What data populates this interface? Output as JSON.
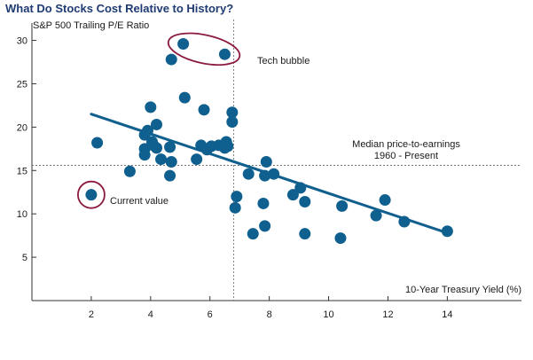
{
  "chart_data": {
    "type": "scatter",
    "title": "What Do Stocks Cost Relative to History?",
    "xlabel": "10-Year Treasury Yield (%)",
    "ylabel": "S&P 500 Trailing P/E Ratio",
    "xlim": [
      0,
      16.5
    ],
    "ylim": [
      0,
      32
    ],
    "xticks": [
      2,
      4,
      6,
      8,
      10,
      12,
      14
    ],
    "yticks": [
      5,
      10,
      15,
      20,
      25,
      30
    ],
    "grid": false,
    "series": [
      {
        "color": "#0f5f8f",
        "points": [
          [
            2.0,
            12.2
          ],
          [
            2.2,
            18.2
          ],
          [
            3.3,
            14.9
          ],
          [
            3.8,
            19.1
          ],
          [
            3.8,
            17.5
          ],
          [
            3.8,
            16.8
          ],
          [
            3.9,
            19.6
          ],
          [
            4.0,
            22.3
          ],
          [
            4.05,
            18.3
          ],
          [
            4.1,
            17.9
          ],
          [
            4.2,
            17.6
          ],
          [
            4.2,
            20.3
          ],
          [
            4.35,
            16.3
          ],
          [
            4.65,
            17.7
          ],
          [
            4.65,
            14.4
          ],
          [
            4.7,
            16.0
          ],
          [
            4.7,
            27.8
          ],
          [
            5.1,
            29.6
          ],
          [
            5.15,
            23.4
          ],
          [
            5.55,
            16.3
          ],
          [
            5.7,
            17.9
          ],
          [
            5.8,
            22.0
          ],
          [
            5.9,
            17.4
          ],
          [
            6.05,
            17.8
          ],
          [
            6.3,
            17.9
          ],
          [
            6.5,
            28.4
          ],
          [
            6.5,
            17.6
          ],
          [
            6.55,
            18.3
          ],
          [
            6.6,
            17.8
          ],
          [
            6.75,
            21.7
          ],
          [
            6.75,
            20.6
          ],
          [
            6.85,
            10.7
          ],
          [
            6.9,
            12.0
          ],
          [
            7.3,
            14.6
          ],
          [
            7.45,
            7.7
          ],
          [
            7.8,
            11.2
          ],
          [
            7.85,
            8.6
          ],
          [
            7.85,
            14.4
          ],
          [
            7.9,
            16.0
          ],
          [
            8.15,
            14.6
          ],
          [
            8.8,
            12.2
          ],
          [
            9.05,
            13.0
          ],
          [
            9.2,
            11.4
          ],
          [
            9.2,
            7.7
          ],
          [
            10.4,
            7.2
          ],
          [
            10.45,
            10.9
          ],
          [
            11.6,
            9.8
          ],
          [
            11.9,
            11.6
          ],
          [
            12.55,
            9.1
          ],
          [
            14.0,
            8.0
          ]
        ]
      }
    ],
    "trend_line": {
      "x": [
        2.0,
        14.0
      ],
      "y": [
        21.5,
        7.8
      ]
    },
    "reference_lines": {
      "x": 6.8,
      "y": 15.6
    },
    "annotations": {
      "tech_bubble": "Tech bubble",
      "current_value": "Current value",
      "median_line1": "Median price-to-earnings",
      "median_line2": "1960 - Present"
    }
  }
}
